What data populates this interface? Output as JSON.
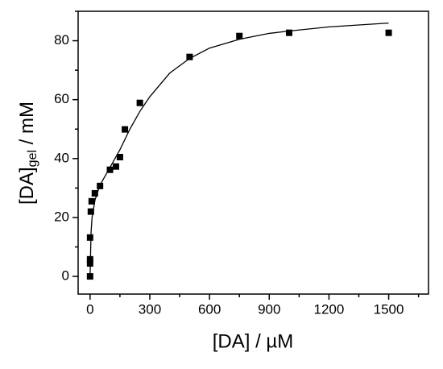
{
  "chart_data": {
    "type": "scatter",
    "xlabel": "[DA] / µM",
    "ylabel": {
      "main": "[DA]",
      "sub": "gel",
      "unit": " / mM"
    },
    "series": [
      {
        "type": "scatter",
        "color": "#000000",
        "x": [
          0,
          0,
          0,
          0,
          4,
          8,
          24,
          50,
          100,
          130,
          150,
          175,
          250,
          500,
          750,
          1000,
          1500
        ],
        "values": [
          0,
          4.4,
          5.8,
          13.2,
          22,
          25.5,
          28.2,
          30.7,
          36.2,
          37.3,
          40.5,
          49.9,
          58.9,
          74.5,
          81.6,
          82.7,
          82.7
        ]
      },
      {
        "type": "line",
        "color": "#000000",
        "x": [
          0,
          5,
          10,
          25,
          50,
          100,
          150,
          200,
          250,
          300,
          400,
          500,
          600,
          750,
          900,
          1000,
          1200,
          1500
        ],
        "values": [
          0,
          15,
          20,
          26,
          31,
          37,
          43,
          50,
          56,
          61,
          69,
          74,
          77.5,
          80.5,
          82.5,
          83.3,
          84.7,
          86
        ]
      }
    ],
    "xlim": [
      -60,
      1700
    ],
    "xticks": [
      0,
      300,
      600,
      900,
      1200,
      1500
    ],
    "xminorticks": [
      150,
      450,
      750,
      1050,
      1350,
      1650
    ],
    "ylim": [
      -6,
      90
    ],
    "yticks": [
      0,
      20,
      40,
      60,
      80
    ],
    "yminorticks": [
      10,
      30,
      50,
      70,
      90
    ]
  }
}
